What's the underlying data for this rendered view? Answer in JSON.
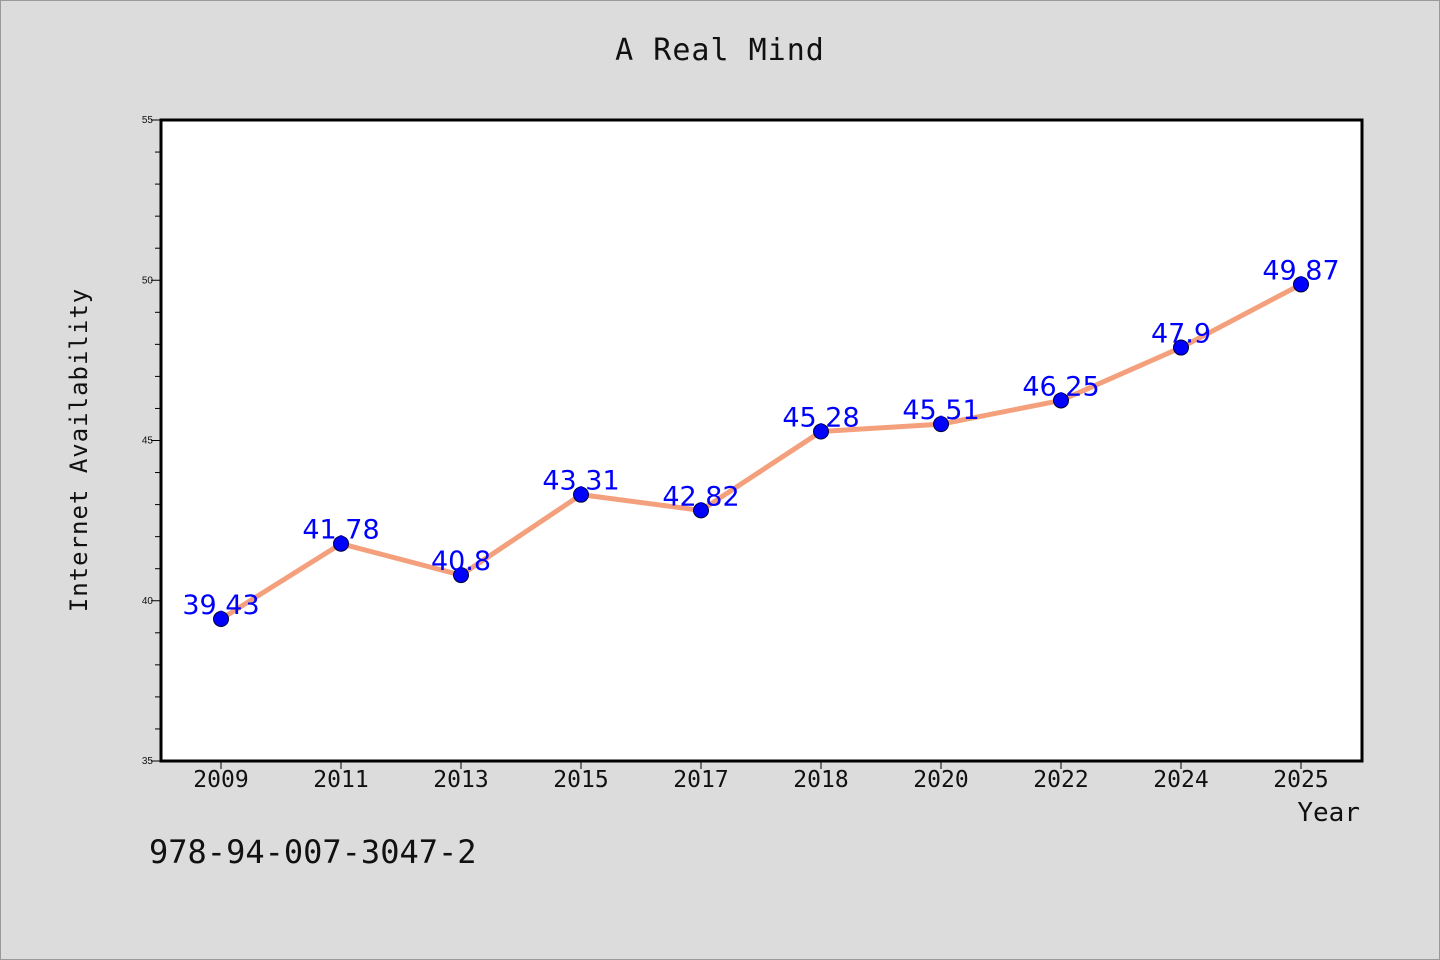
{
  "chart_data": {
    "type": "line",
    "title": "A Real Mind",
    "xlabel": "Year",
    "ylabel": "Internet Availability",
    "categories": [
      "2009",
      "2011",
      "2013",
      "2015",
      "2017",
      "2018",
      "2020",
      "2022",
      "2024",
      "2025"
    ],
    "series": [
      {
        "values": [
          39.43,
          41.78,
          40.8,
          43.31,
          42.82,
          45.28,
          45.51,
          46.25,
          47.9,
          49.87
        ],
        "labels": [
          "39.43",
          "41.78",
          "40.8",
          "43.31",
          "42.82",
          "45.28",
          "45.51",
          "46.25",
          "47.9",
          "49.87"
        ],
        "line_color": "#f4a07c",
        "marker_color": "#0000ff"
      }
    ],
    "ylim": [
      35,
      55
    ],
    "yticks": [
      "35",
      "40",
      "45",
      "50",
      "55"
    ],
    "data_label_color": "#0000ff",
    "grid": false,
    "legend": "none"
  },
  "footer": {
    "code": "978-94-007-3047-2"
  }
}
